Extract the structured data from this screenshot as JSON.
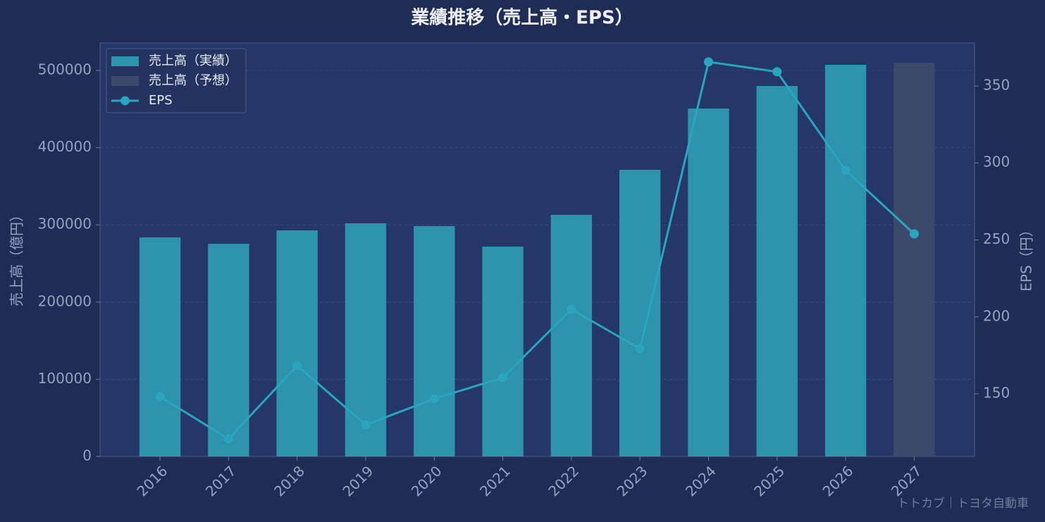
{
  "chart_data": {
    "type": "bar",
    "title": "業績推移（売上高・EPS）",
    "ylabel": "売上高（億円）",
    "y2label": "EPS（円）",
    "categories": [
      "2016",
      "2017",
      "2018",
      "2019",
      "2020",
      "2021",
      "2022",
      "2023",
      "2024",
      "2025",
      "2026",
      "2027"
    ],
    "series": [
      {
        "name": "売上高（実績）",
        "type": "bar",
        "color": "#2e93ac",
        "values": [
          283800,
          275500,
          292900,
          302000,
          298400,
          271900,
          313000,
          371400,
          450700,
          479900,
          507300,
          null
        ]
      },
      {
        "name": "売上高（予想）",
        "type": "bar",
        "color": "#3b4a6b",
        "values": [
          null,
          null,
          null,
          null,
          null,
          null,
          null,
          null,
          null,
          null,
          null,
          510000
        ]
      },
      {
        "name": "EPS",
        "type": "line",
        "axis": "y2",
        "color": "#2aa5bf",
        "values": [
          148.2,
          120.7,
          168.3,
          129.9,
          146.8,
          160.5,
          204.9,
          179.3,
          365.6,
          359.2,
          295.1,
          253.9
        ]
      }
    ],
    "ylim": [
      0,
      535600
    ],
    "yticks": [
      0,
      100000,
      200000,
      300000,
      400000,
      500000
    ],
    "y2lim": [
      109.3,
      377.9
    ],
    "y2ticks": [
      150,
      200,
      250,
      300,
      350
    ],
    "grid": true,
    "legend": "upper left",
    "source": "トトカブ｜トヨタ自動車"
  }
}
